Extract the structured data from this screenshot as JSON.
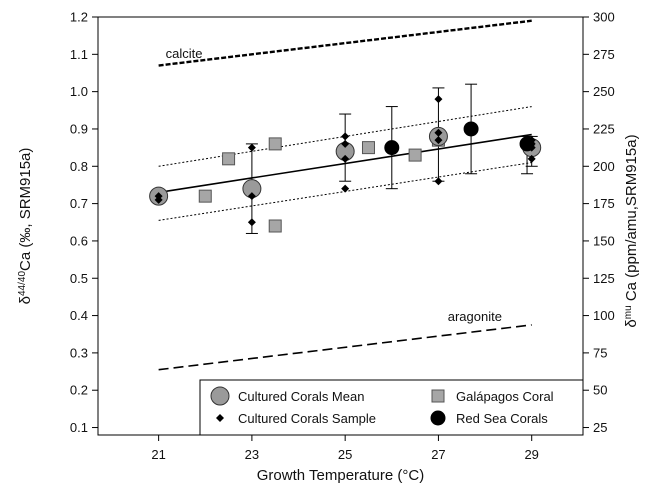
{
  "chart_data": {
    "type": "scatter",
    "xlabel": "Growth Temperature (°C)",
    "ylabel_left": {
      "delta": "δ",
      "sup": "44/40",
      "rest": "Ca (‰, SRM915a)"
    },
    "ylabel_right": {
      "delta": "δ",
      "sup": "mu",
      "rest": " Ca (ppm/amu,SRM915a)"
    },
    "xlim": [
      19.7,
      30.1
    ],
    "ylim": [
      0.08,
      1.2
    ],
    "x_ticks": [
      21,
      23,
      25,
      27,
      29
    ],
    "y_ticks_left": [
      0.1,
      0.2,
      0.3,
      0.4,
      0.5,
      0.6,
      0.7,
      0.8,
      0.9,
      1.0,
      1.1,
      1.2
    ],
    "y_tick_labels_left": [
      "0.1",
      "0.2",
      "0.3",
      "0.4",
      "0.5",
      "0.6",
      "0.7",
      "0.8",
      "0.9",
      "1.0",
      "1.1",
      "1.2"
    ],
    "y_ticks_right": [
      25,
      50,
      75,
      100,
      125,
      150,
      175,
      200,
      225,
      250,
      275,
      300
    ],
    "grid": false,
    "legend_position": "bottom-right",
    "series": [
      {
        "name": "Cultured Corals Mean",
        "marker": "circle-gray",
        "points": [
          {
            "x": 21,
            "y": 0.72,
            "yerr_low": null,
            "yerr_high": null
          },
          {
            "x": 23,
            "y": 0.74,
            "yerr_low": 0.62,
            "yerr_high": 0.86
          },
          {
            "x": 25,
            "y": 0.84,
            "yerr_low": 0.76,
            "yerr_high": 0.94
          },
          {
            "x": 27,
            "y": 0.88,
            "yerr_low": 0.76,
            "yerr_high": 1.01
          },
          {
            "x": 29,
            "y": 0.85,
            "yerr_low": 0.8,
            "yerr_high": 0.88
          }
        ]
      },
      {
        "name": "Cultured Corals Sample",
        "marker": "diamond-black",
        "points": [
          {
            "x": 21,
            "y": 0.72
          },
          {
            "x": 21,
            "y": 0.71
          },
          {
            "x": 23,
            "y": 0.85
          },
          {
            "x": 23,
            "y": 0.65
          },
          {
            "x": 23,
            "y": 0.72
          },
          {
            "x": 25,
            "y": 0.86
          },
          {
            "x": 25,
            "y": 0.82
          },
          {
            "x": 25,
            "y": 0.74
          },
          {
            "x": 25,
            "y": 0.88
          },
          {
            "x": 27,
            "y": 0.98
          },
          {
            "x": 27,
            "y": 0.89
          },
          {
            "x": 27,
            "y": 0.87
          },
          {
            "x": 27,
            "y": 0.76
          },
          {
            "x": 29,
            "y": 0.87
          },
          {
            "x": 29,
            "y": 0.85
          },
          {
            "x": 29,
            "y": 0.82
          },
          {
            "x": 29,
            "y": 0.86
          }
        ]
      },
      {
        "name": "Galápagos Coral",
        "marker": "square-gray",
        "points": [
          {
            "x": 22.0,
            "y": 0.72
          },
          {
            "x": 22.5,
            "y": 0.82
          },
          {
            "x": 23.5,
            "y": 0.86
          },
          {
            "x": 23.5,
            "y": 0.64
          },
          {
            "x": 25.5,
            "y": 0.85
          },
          {
            "x": 26.5,
            "y": 0.83
          },
          {
            "x": 27.0,
            "y": 0.87
          }
        ]
      },
      {
        "name": "Red Sea Corals",
        "marker": "circle-black",
        "points": [
          {
            "x": 26.0,
            "y": 0.85,
            "yerr_low": 0.74,
            "yerr_high": 0.96
          },
          {
            "x": 27.7,
            "y": 0.9,
            "yerr_low": 0.78,
            "yerr_high": 1.02
          },
          {
            "x": 28.9,
            "y": 0.86,
            "yerr_low": 0.78,
            "yerr_high": 0.88
          }
        ]
      }
    ],
    "lines": [
      {
        "name": "regression",
        "style": "solid",
        "x": [
          21,
          29
        ],
        "y": [
          0.73,
          0.885
        ]
      },
      {
        "name": "ci-upper",
        "style": "dotted",
        "x": [
          21,
          29
        ],
        "y": [
          0.8,
          0.96
        ]
      },
      {
        "name": "ci-lower",
        "style": "dotted",
        "x": [
          21,
          29
        ],
        "y": [
          0.655,
          0.81
        ]
      },
      {
        "name": "calcite",
        "style": "dashed-bold",
        "x": [
          21,
          29
        ],
        "y": [
          1.07,
          1.19
        ]
      },
      {
        "name": "aragonite",
        "style": "dashed",
        "x": [
          21,
          29
        ],
        "y": [
          0.255,
          0.375
        ]
      }
    ],
    "annotations": [
      {
        "text": "calcite",
        "x": 21.15,
        "y": 1.09
      },
      {
        "text": "aragonite",
        "x": 27.2,
        "y": 0.385
      }
    ]
  }
}
